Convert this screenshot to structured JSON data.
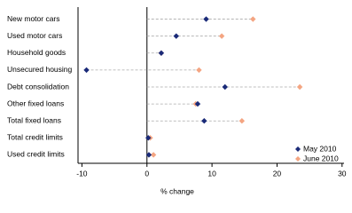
{
  "chart_data": {
    "type": "dot",
    "categories": [
      "New motor cars",
      "Used motor cars",
      "Household goods",
      "Unsecured housing",
      "Debt consolidation",
      "Other fixed loans",
      "Total fixed loans",
      "Total credit limits",
      "Used credit limits"
    ],
    "series": [
      {
        "name": "May 2010",
        "color": "#1a2a78",
        "values": [
          9.1,
          4.5,
          2.2,
          -9.3,
          12.0,
          7.8,
          8.8,
          0.2,
          0.3
        ]
      },
      {
        "name": "June 2010",
        "color": "#f4a582",
        "values": [
          16.3,
          11.5,
          2.2,
          8.0,
          23.5,
          7.5,
          14.6,
          0.5,
          1.0
        ]
      }
    ],
    "xlabel": "% change",
    "xlim": [
      -10.6,
      30.3
    ],
    "xticks": [
      -10,
      0,
      10,
      20,
      30
    ],
    "legend": "lower right"
  }
}
